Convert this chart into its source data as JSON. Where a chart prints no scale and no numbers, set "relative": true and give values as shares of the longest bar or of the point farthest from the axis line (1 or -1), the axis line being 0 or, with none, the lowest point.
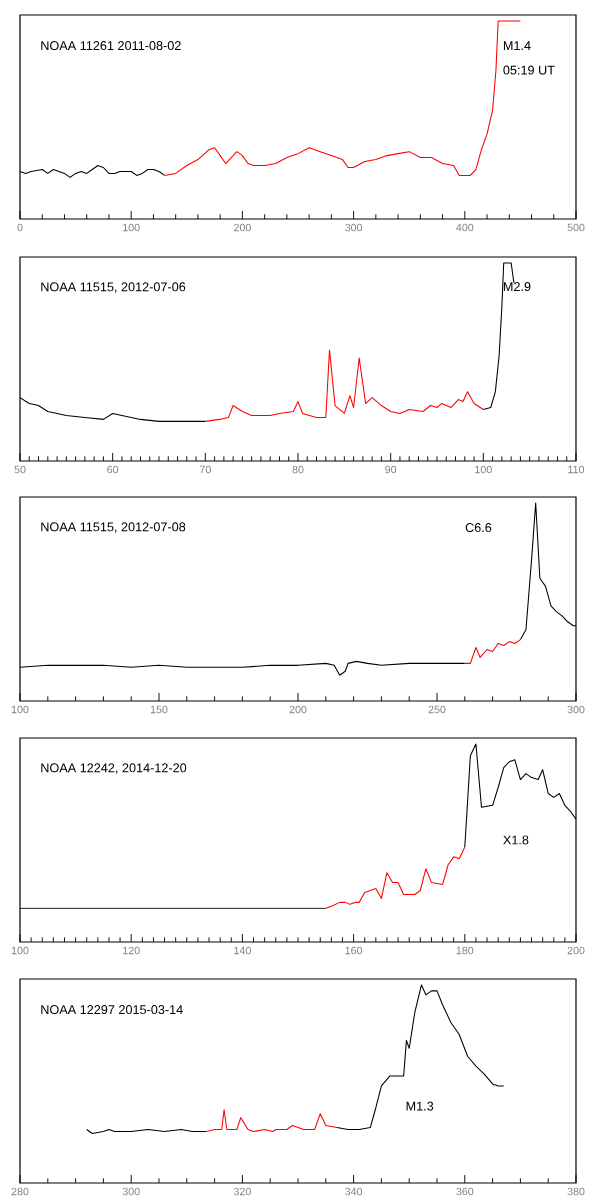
{
  "chart_data": [
    {
      "type": "line",
      "relative": true,
      "title": "NOAA 11261 2011-08-02",
      "annotations": [
        "M1.4",
        "05:19 UT"
      ],
      "xlim": [
        0,
        500
      ],
      "xticks": [
        0,
        100,
        200,
        300,
        400,
        500
      ],
      "series": [
        {
          "color": "#000000",
          "x": [
            0,
            5,
            10,
            20,
            25,
            30,
            40,
            45,
            50,
            55,
            60,
            65,
            70,
            75,
            80,
            85,
            90,
            100,
            105,
            110,
            115,
            120,
            125,
            130
          ],
          "values": [
            0.24,
            0.23,
            0.24,
            0.25,
            0.23,
            0.25,
            0.23,
            0.21,
            0.23,
            0.24,
            0.23,
            0.25,
            0.27,
            0.26,
            0.23,
            0.23,
            0.24,
            0.24,
            0.22,
            0.23,
            0.25,
            0.25,
            0.24,
            0.22
          ]
        },
        {
          "color": "#ff0000",
          "x": [
            130,
            140,
            150,
            160,
            170,
            175,
            180,
            185,
            190,
            195,
            200,
            205,
            210,
            220,
            230,
            240,
            245,
            250,
            260,
            265,
            270,
            280,
            290,
            295,
            300,
            310,
            320,
            330,
            340,
            350,
            360,
            370,
            380,
            390,
            395,
            405,
            410,
            415,
            420,
            425,
            428,
            430,
            450
          ],
          "values": [
            0.22,
            0.23,
            0.27,
            0.3,
            0.35,
            0.36,
            0.32,
            0.28,
            0.31,
            0.34,
            0.32,
            0.28,
            0.27,
            0.27,
            0.28,
            0.31,
            0.32,
            0.33,
            0.36,
            0.35,
            0.34,
            0.32,
            0.3,
            0.26,
            0.26,
            0.29,
            0.3,
            0.32,
            0.33,
            0.34,
            0.31,
            0.31,
            0.28,
            0.27,
            0.22,
            0.22,
            0.25,
            0.35,
            0.43,
            0.55,
            0.75,
            1,
            1
          ]
        }
      ]
    },
    {
      "type": "line",
      "relative": true,
      "title": "NOAA 11515, 2012-07-06",
      "annotations": [
        "M2.9"
      ],
      "xlim": [
        50,
        110
      ],
      "xticks": [
        50,
        60,
        70,
        80,
        90,
        100,
        110
      ],
      "series": [
        {
          "color": "#000000",
          "x": [
            50,
            51,
            52,
            53,
            55,
            57,
            59,
            60,
            61,
            63,
            65,
            68,
            70
          ],
          "values": [
            0.32,
            0.29,
            0.28,
            0.25,
            0.23,
            0.22,
            0.21,
            0.24,
            0.23,
            0.21,
            0.2,
            0.2,
            0.2
          ]
        },
        {
          "color": "#ff0000",
          "x": [
            70,
            71.5,
            72.5,
            73,
            74,
            75,
            77,
            78,
            79.5,
            80,
            80.5,
            82,
            83,
            83.4,
            84,
            85,
            85.6,
            86,
            86.6,
            87.3,
            88,
            89,
            90,
            91,
            92,
            93.5,
            94.3,
            95,
            95.5,
            96.5,
            97.3,
            97.8,
            98.3,
            99,
            100
          ],
          "values": [
            0.2,
            0.21,
            0.22,
            0.28,
            0.25,
            0.23,
            0.23,
            0.24,
            0.25,
            0.3,
            0.24,
            0.22,
            0.22,
            0.56,
            0.28,
            0.24,
            0.33,
            0.27,
            0.52,
            0.29,
            0.32,
            0.28,
            0.25,
            0.24,
            0.26,
            0.25,
            0.28,
            0.27,
            0.29,
            0.27,
            0.31,
            0.3,
            0.35,
            0.29,
            0.26
          ]
        },
        {
          "color": "#000000",
          "x": [
            100,
            100.8,
            101.3,
            101.7,
            102,
            102.2,
            103,
            103.3
          ],
          "values": [
            0.26,
            0.27,
            0.35,
            0.53,
            0.78,
            1,
            1,
            0.9
          ]
        }
      ]
    },
    {
      "type": "line",
      "relative": true,
      "title": "NOAA 11515, 2012-07-08",
      "annotations": [
        "C6.6"
      ],
      "xlim": [
        100,
        300
      ],
      "xticks": [
        100,
        150,
        200,
        250,
        300
      ],
      "series": [
        {
          "color": "#000000",
          "x": [
            100,
            110,
            120,
            130,
            140,
            150,
            160,
            170,
            180,
            190,
            200,
            210,
            213,
            215,
            217,
            218,
            221,
            225,
            230,
            240,
            250,
            258,
            260
          ],
          "values": [
            0.17,
            0.18,
            0.18,
            0.18,
            0.17,
            0.18,
            0.17,
            0.17,
            0.17,
            0.18,
            0.18,
            0.19,
            0.18,
            0.13,
            0.15,
            0.19,
            0.2,
            0.19,
            0.18,
            0.19,
            0.19,
            0.19,
            0.19
          ]
        },
        {
          "color": "#ff0000",
          "x": [
            260,
            262,
            264,
            265.5,
            268,
            270,
            272,
            274,
            276,
            278,
            280
          ],
          "values": [
            0.19,
            0.19,
            0.27,
            0.22,
            0.26,
            0.25,
            0.29,
            0.28,
            0.3,
            0.29,
            0.31
          ]
        },
        {
          "color": "#000000",
          "x": [
            280,
            282,
            284,
            285.5,
            287,
            289,
            291,
            293,
            295,
            297,
            299,
            300
          ],
          "values": [
            0.31,
            0.36,
            0.71,
            1,
            0.62,
            0.58,
            0.48,
            0.45,
            0.43,
            0.4,
            0.38,
            0.38
          ]
        }
      ]
    },
    {
      "type": "line",
      "relative": true,
      "title": "NOAA 12242, 2014-12-20",
      "annotations": [
        "X1.8"
      ],
      "xlim": [
        100,
        200
      ],
      "xticks": [
        100,
        120,
        140,
        160,
        180,
        200
      ],
      "series": [
        {
          "color": "#000000",
          "x": [
            100,
            135,
            137,
            139,
            141,
            155
          ],
          "values": [
            0.17,
            0.17,
            0.17,
            0.17,
            0.17,
            0.17
          ]
        },
        {
          "color": "#ff0000",
          "x": [
            155,
            156,
            157.5,
            158.5,
            159.3,
            160.3,
            161,
            162,
            163,
            164,
            165,
            166,
            167,
            168,
            169,
            170,
            171,
            172,
            173,
            174,
            176,
            177,
            178,
            179,
            180
          ],
          "values": [
            0.17,
            0.18,
            0.2,
            0.2,
            0.19,
            0.2,
            0.2,
            0.25,
            0.26,
            0.27,
            0.22,
            0.35,
            0.3,
            0.3,
            0.24,
            0.24,
            0.24,
            0.26,
            0.37,
            0.3,
            0.29,
            0.39,
            0.43,
            0.42,
            0.48
          ]
        },
        {
          "color": "#000000",
          "x": [
            180,
            181,
            182,
            183,
            185,
            186,
            187,
            188,
            189,
            190,
            191,
            192,
            193.2,
            194,
            195,
            196,
            197,
            198,
            199,
            200
          ],
          "values": [
            0.48,
            0.94,
            1,
            0.68,
            0.69,
            0.78,
            0.88,
            0.91,
            0.92,
            0.82,
            0.85,
            0.83,
            0.82,
            0.87,
            0.75,
            0.73,
            0.75,
            0.69,
            0.66,
            0.62
          ]
        }
      ]
    },
    {
      "type": "line",
      "relative": true,
      "title": "NOAA 12297 2015-03-14",
      "annotations": [
        "M1.3"
      ],
      "xlim": [
        280,
        380
      ],
      "xticks": [
        280,
        300,
        320,
        340,
        360,
        380
      ],
      "series": [
        {
          "color": "#000000",
          "x": [
            292,
            293,
            295,
            296,
            297,
            300,
            303,
            306,
            309,
            311,
            313.5
          ],
          "values": [
            0.27,
            0.25,
            0.26,
            0.27,
            0.26,
            0.26,
            0.27,
            0.26,
            0.27,
            0.26,
            0.26
          ]
        },
        {
          "color": "#ff0000",
          "x": [
            313.5,
            315,
            316.3,
            316.7,
            317.2,
            319,
            319.7,
            321,
            322,
            324,
            325.5,
            326,
            328,
            329,
            331,
            333,
            334,
            335,
            337
          ],
          "values": [
            0.26,
            0.27,
            0.27,
            0.37,
            0.27,
            0.27,
            0.33,
            0.27,
            0.26,
            0.27,
            0.26,
            0.27,
            0.27,
            0.29,
            0.27,
            0.27,
            0.35,
            0.29,
            0.28
          ]
        },
        {
          "color": "#000000",
          "x": [
            337,
            339,
            341,
            343,
            344,
            345,
            346.5,
            349,
            349.5,
            350,
            351,
            352.2,
            353,
            354,
            355,
            356,
            357.5,
            358.5,
            359,
            360.5,
            362,
            363.5,
            365,
            366,
            367
          ],
          "values": [
            0.28,
            0.27,
            0.27,
            0.28,
            0.38,
            0.49,
            0.54,
            0.54,
            0.72,
            0.68,
            0.86,
            1,
            0.95,
            0.97,
            0.97,
            0.9,
            0.81,
            0.77,
            0.75,
            0.64,
            0.59,
            0.55,
            0.5,
            0.49,
            0.49
          ]
        }
      ]
    }
  ]
}
